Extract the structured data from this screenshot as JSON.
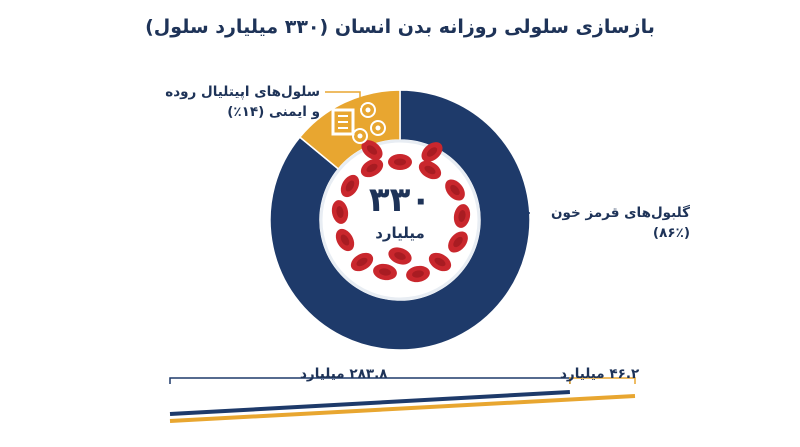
{
  "title": "بازسازی سلولی روزانه بدن انسان (۳۳۰ میلیارد سلول)",
  "center": {
    "value": "۳۳۰",
    "unit": "میلیارد"
  },
  "colors": {
    "navy": "#1e3a6a",
    "gold": "#e8a630",
    "red": "#c9272d",
    "border": "#e8edf3"
  },
  "icons": [
    "intestine-icon",
    "immune-cell-icon",
    "red-blood-cell-icon"
  ],
  "chart_data": [
    {
      "type": "pie",
      "title": "بازسازی سلولی روزانه بدن انسان (۳۳۰ میلیارد سلول)",
      "series": [
        {
          "label_line1": "گلبول‌های قرمز خون",
          "label_line2": "(۸۶٪)",
          "value": 86,
          "color": "#1e3a6a"
        },
        {
          "label_line1": "سلول‌های اپیتلیال روده",
          "label_line2": "و ایمنی (۱۴٪)",
          "value": 14,
          "color": "#e8a630"
        }
      ]
    },
    {
      "type": "bar",
      "orientation": "horizontal-stacked",
      "series": [
        {
          "label": "۲۸۳.۸ میلیارد",
          "value": 283.8,
          "color": "#1e3a6a"
        },
        {
          "label": "۴۶.۲ میلیارد",
          "value": 46.2,
          "color": "#e8a630"
        }
      ]
    }
  ]
}
